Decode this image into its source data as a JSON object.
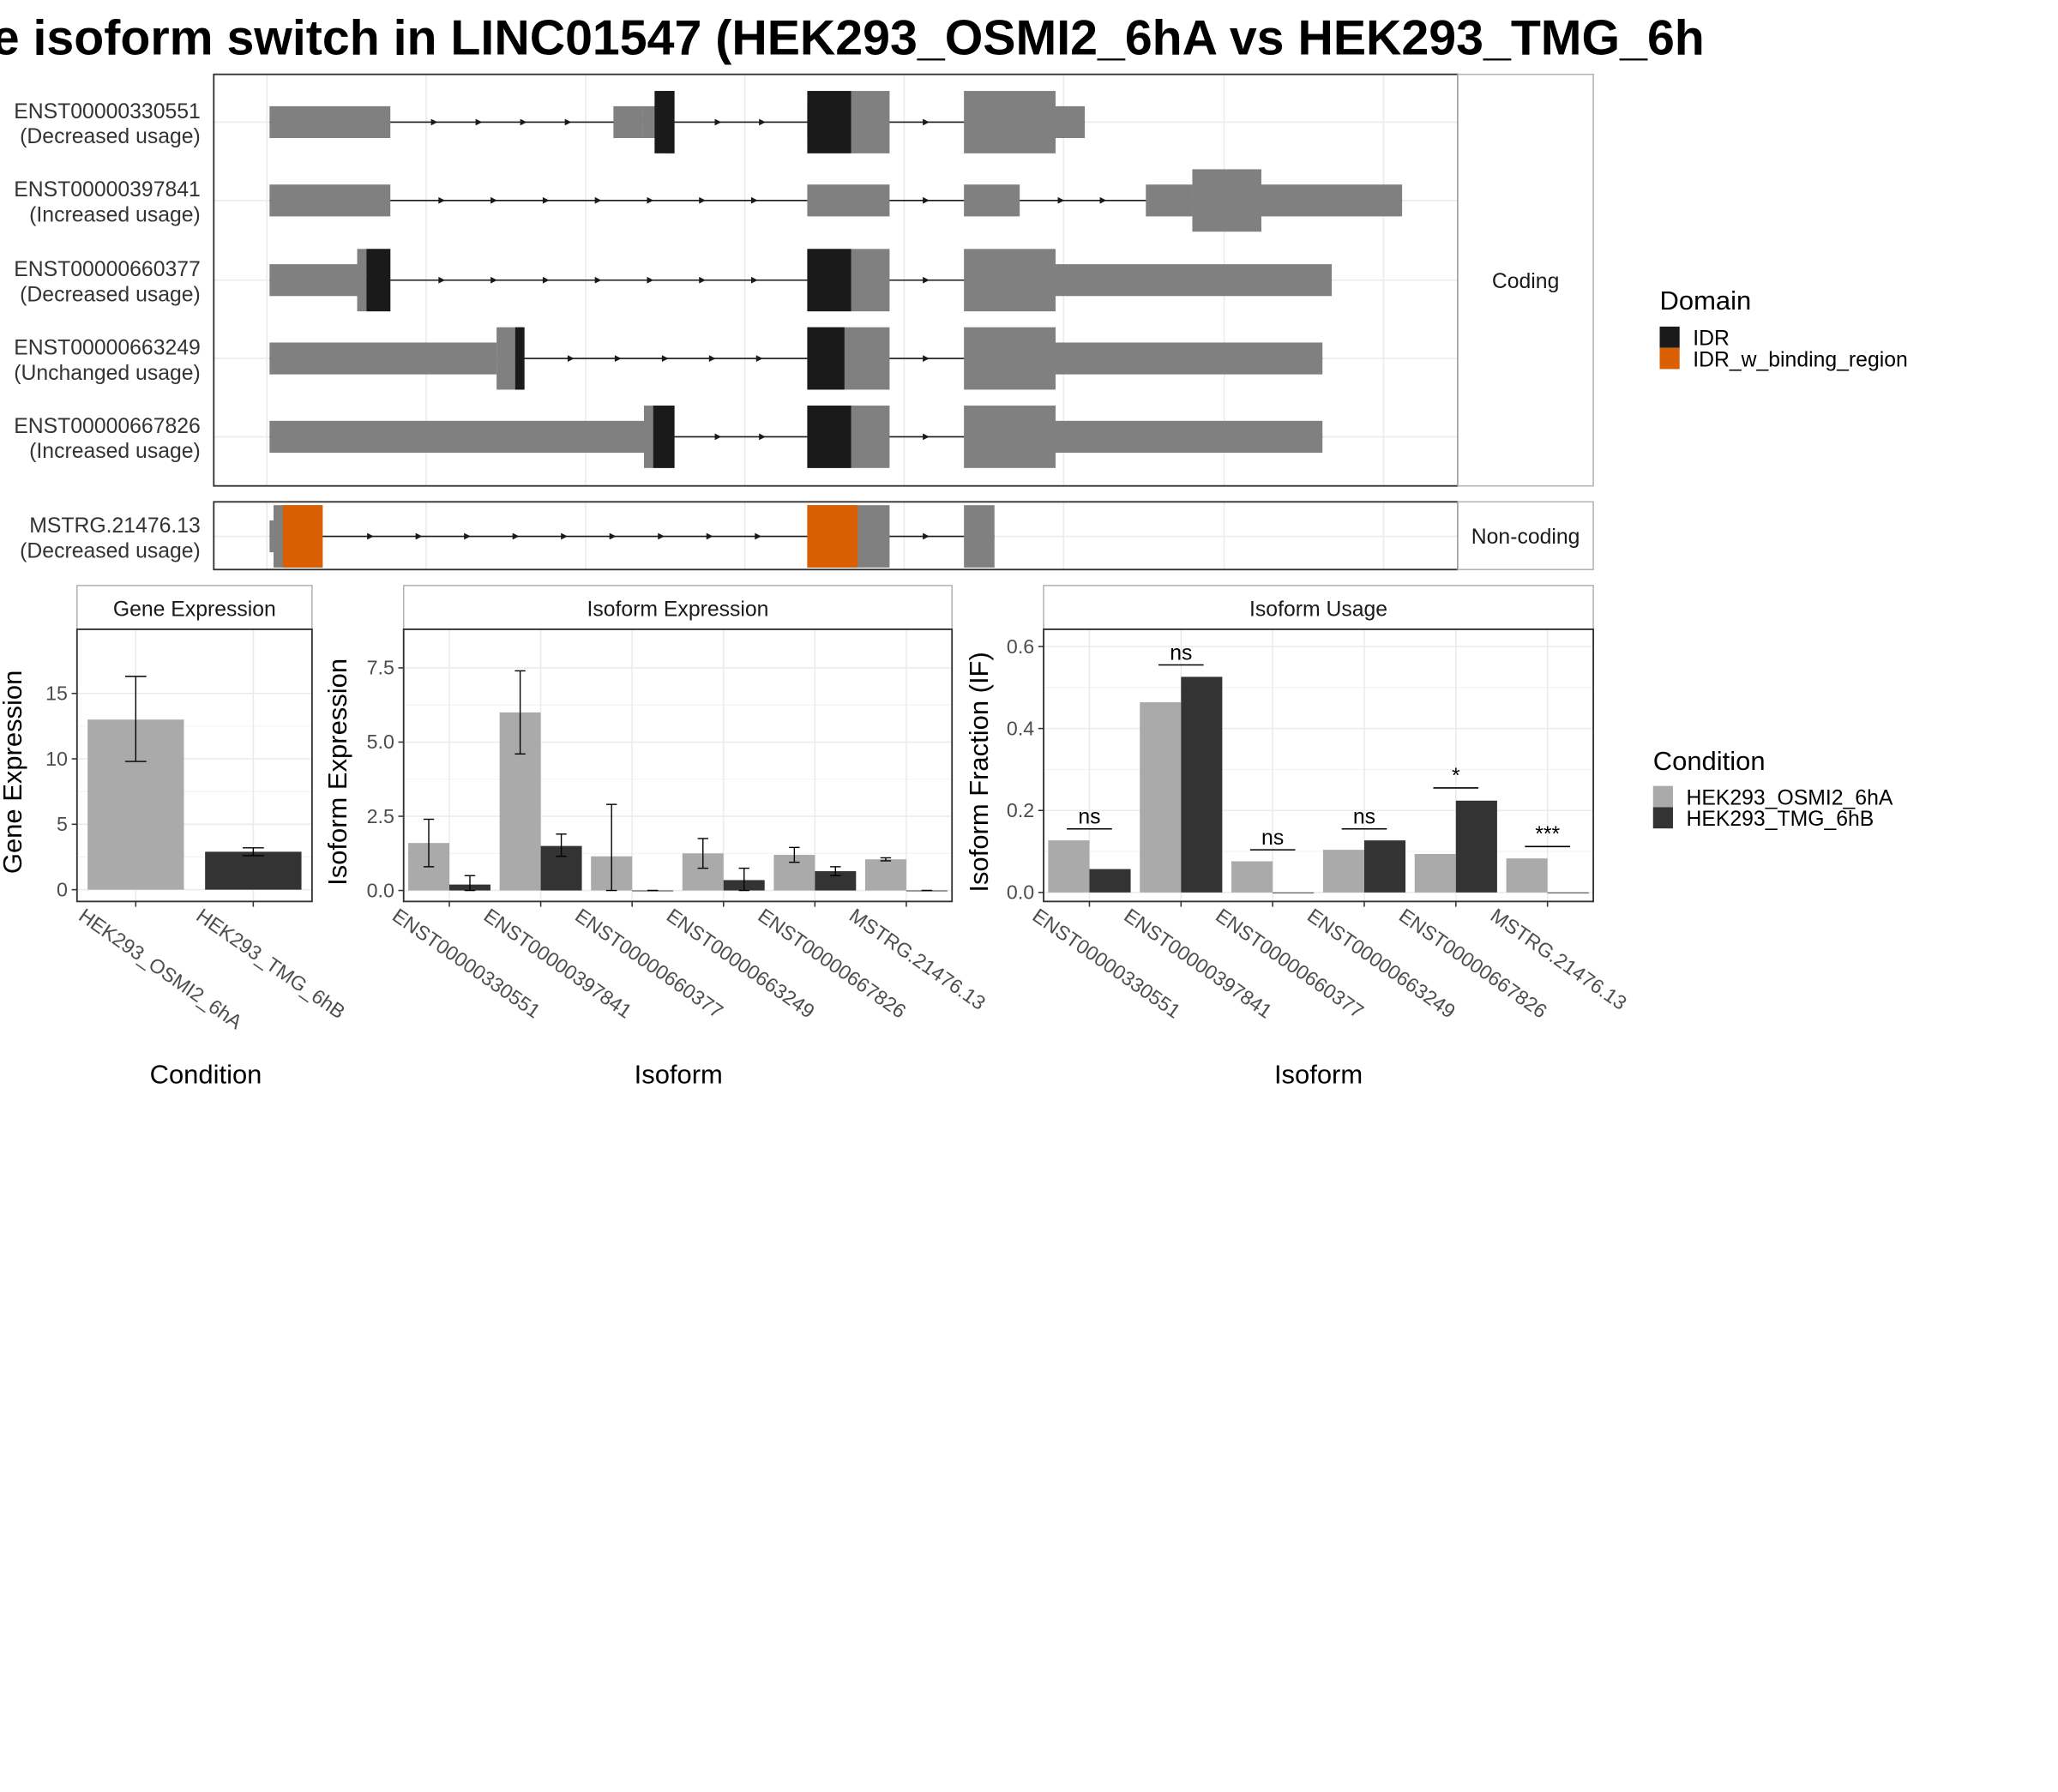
{
  "title": "e isoform switch in LINC01547 (HEK293_OSMI2_6hA vs HEK293_TMG_6h",
  "colors": {
    "exon": "#808080",
    "IDR": "#1a1a1a",
    "IDR_w_binding_region": "#d95f02",
    "cond1": "#aaaaaa",
    "cond2": "#333333",
    "grid": "#ebebeb",
    "panel_border": "#333333",
    "strip_border": "#b3b3b3"
  },
  "structure": {
    "groups": [
      {
        "label": "Coding",
        "isoforms": [
          0,
          1,
          2,
          3,
          4
        ]
      },
      {
        "label": "Non-coding",
        "isoforms": [
          5
        ]
      }
    ],
    "isoforms": [
      {
        "id": "ENST00000330551",
        "usage": "(Decreased usage)",
        "exons": [
          [
            0,
            91,
            "n"
          ],
          [
            259,
            281,
            "n"
          ],
          [
            281,
            298,
            "d"
          ],
          [
            298,
            305,
            "c"
          ],
          [
            405,
            438,
            "d"
          ],
          [
            438,
            467,
            "c"
          ],
          [
            523,
            592,
            "c"
          ],
          [
            592,
            614,
            "n"
          ]
        ],
        "domains": [
          [
            "IDR",
            290,
            305
          ],
          [
            "IDR",
            405,
            438
          ]
        ]
      },
      {
        "id": "ENST00000397841",
        "usage": "(Increased usage)",
        "exons": [
          [
            0,
            91,
            "n"
          ],
          [
            405,
            467,
            "n"
          ],
          [
            523,
            565,
            "n"
          ],
          [
            660,
            695,
            "n"
          ],
          [
            695,
            747,
            "c"
          ],
          [
            747,
            853,
            "n"
          ]
        ],
        "domains": []
      },
      {
        "id": "ENST00000660377",
        "usage": "(Decreased usage)",
        "exons": [
          [
            0,
            66,
            "n"
          ],
          [
            66,
            73,
            "c"
          ],
          [
            73,
            91,
            "c"
          ],
          [
            405,
            467,
            "c"
          ],
          [
            523,
            592,
            "c"
          ],
          [
            592,
            800,
            "n"
          ]
        ],
        "domains": [
          [
            "IDR",
            73,
            91
          ],
          [
            "IDR",
            405,
            438
          ]
        ]
      },
      {
        "id": "ENST00000663249",
        "usage": "(Unchanged usage)",
        "exons": [
          [
            0,
            171,
            "n"
          ],
          [
            171,
            185,
            "c"
          ],
          [
            185,
            192,
            "c"
          ],
          [
            405,
            467,
            "c"
          ],
          [
            523,
            592,
            "c"
          ],
          [
            592,
            793,
            "n"
          ]
        ],
        "domains": [
          [
            "IDR",
            185,
            192
          ],
          [
            "IDR",
            405,
            433
          ]
        ]
      },
      {
        "id": "ENST00000667826",
        "usage": "(Increased usage)",
        "exons": [
          [
            0,
            282,
            "n"
          ],
          [
            282,
            305,
            "c"
          ],
          [
            405,
            467,
            "c"
          ],
          [
            523,
            592,
            "c"
          ],
          [
            592,
            793,
            "n"
          ]
        ],
        "domains": [
          [
            "IDR",
            289,
            305
          ],
          [
            "IDR",
            405,
            438
          ]
        ]
      },
      {
        "id": "MSTRG.21476.13",
        "usage": "(Decreased usage)",
        "exons": [
          [
            0,
            3,
            "n"
          ],
          [
            3,
            40,
            "c"
          ],
          [
            405,
            467,
            "c"
          ],
          [
            523,
            546,
            "c"
          ]
        ],
        "domains": [
          [
            "IDR_w_binding_region",
            10,
            40
          ],
          [
            "IDR_w_binding_region",
            405,
            443
          ]
        ]
      }
    ]
  },
  "legend_domain": {
    "title": "Domain",
    "items": [
      "IDR",
      "IDR_w_binding_region"
    ]
  },
  "legend_condition": {
    "title": "Condition",
    "items": [
      "HEK293_OSMI2_6hA",
      "HEK293_TMG_6hB"
    ]
  },
  "chart_data": [
    {
      "type": "bar",
      "title": "Gene Expression",
      "xlabel": "Condition",
      "ylabel": "Gene Expression",
      "categories": [
        "HEK293_OSMI2_6hA",
        "HEK293_TMG_6hB"
      ],
      "values": [
        13.0,
        2.9
      ],
      "error": [
        [
          9.8,
          16.3
        ],
        [
          2.6,
          3.2
        ]
      ],
      "ylim": [
        -0.9,
        19.9
      ],
      "yticks": [
        0,
        5,
        10,
        15
      ],
      "ytick_labels": [
        "0",
        "5",
        "10",
        "15"
      ]
    },
    {
      "type": "bar",
      "title": "Isoform Expression",
      "xlabel": "Isoform",
      "ylabel": "Isoform Expression",
      "categories": [
        "ENST00000330551",
        "ENST00000397841",
        "ENST00000660377",
        "ENST00000663249",
        "ENST00000667826",
        "MSTRG.21476.13"
      ],
      "series": [
        {
          "name": "HEK293_OSMI2_6hA",
          "values": [
            1.6,
            6.0,
            1.15,
            1.25,
            1.2,
            1.05
          ],
          "error": [
            [
              0.8,
              2.4
            ],
            [
              4.6,
              7.4
            ],
            [
              0.0,
              2.9
            ],
            [
              0.75,
              1.75
            ],
            [
              0.95,
              1.45
            ],
            [
              1.0,
              1.1
            ]
          ]
        },
        {
          "name": "HEK293_TMG_6hB",
          "values": [
            0.2,
            1.5,
            0.0,
            0.35,
            0.65,
            0.0
          ],
          "error": [
            [
              0.0,
              0.5
            ],
            [
              1.15,
              1.9
            ],
            [
              0.0,
              0.0
            ],
            [
              0.0,
              0.75
            ],
            [
              0.5,
              0.8
            ],
            [
              0.0,
              0.0
            ]
          ]
        }
      ],
      "ylim": [
        -0.37,
        8.8
      ],
      "yticks": [
        0,
        2.5,
        5,
        7.5
      ],
      "ytick_labels": [
        "0.0",
        "2.5",
        "5.0",
        "7.5"
      ]
    },
    {
      "type": "bar",
      "title": "Isoform Usage",
      "xlabel": "Isoform",
      "ylabel": "Isoform Fraction (IF)",
      "categories": [
        "ENST00000330551",
        "ENST00000397841",
        "ENST00000660377",
        "ENST00000663249",
        "ENST00000667826",
        "MSTRG.21476.13"
      ],
      "series": [
        {
          "name": "HEK293_OSMI2_6hA",
          "values": [
            0.127,
            0.464,
            0.076,
            0.104,
            0.094,
            0.083
          ]
        },
        {
          "name": "HEK293_TMG_6hB",
          "values": [
            0.057,
            0.526,
            0.0,
            0.127,
            0.224,
            0.0
          ]
        }
      ],
      "significance": [
        "ns",
        "ns",
        "ns",
        "ns",
        "*",
        "***"
      ],
      "sig_y": [
        0.155,
        0.555,
        0.104,
        0.155,
        0.255,
        0.112
      ],
      "ylim": [
        -0.022,
        0.642
      ],
      "yticks": [
        0,
        0.2,
        0.4,
        0.6
      ],
      "ytick_labels": [
        "0.0",
        "0.2",
        "0.4",
        "0.6"
      ]
    }
  ]
}
